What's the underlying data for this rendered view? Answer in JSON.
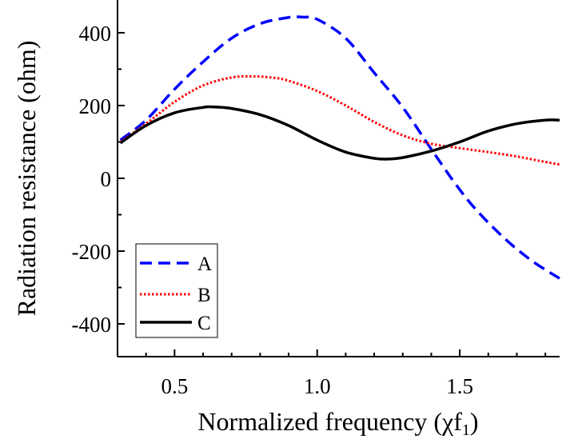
{
  "chart_data": {
    "type": "line",
    "title": "",
    "xlabel": "Normalized frequency (χf",
    "xlabel_subscript": "1",
    "xlabel_close": ")",
    "ylabel": "Radiation resistance (ohm)",
    "xlim": [
      0.3,
      1.85
    ],
    "ylim": [
      -490,
      490
    ],
    "xticks": [
      0.5,
      1.0,
      1.5
    ],
    "xtick_labels": [
      "0.5",
      "1.0",
      "1.5"
    ],
    "yticks": [
      -400,
      -200,
      0,
      200,
      400
    ],
    "ytick_labels": [
      "-400",
      "-200",
      "0",
      "200",
      "400"
    ],
    "legend_position": "bottom-left",
    "series": [
      {
        "name": "A",
        "color": "#0000ff",
        "style": "dashed",
        "x": [
          0.31,
          0.4,
          0.5,
          0.6,
          0.7,
          0.8,
          0.9,
          0.95,
          1.0,
          1.1,
          1.2,
          1.3,
          1.4,
          1.48,
          1.55,
          1.65,
          1.75,
          1.85
        ],
        "y": [
          105,
          160,
          245,
          320,
          385,
          425,
          442,
          443,
          437,
          385,
          290,
          195,
          80,
          -10,
          -80,
          -160,
          -225,
          -275
        ]
      },
      {
        "name": "B",
        "color": "#ff0000",
        "style": "dotted",
        "x": [
          0.31,
          0.4,
          0.5,
          0.6,
          0.7,
          0.78,
          0.85,
          0.9,
          1.0,
          1.1,
          1.2,
          1.3,
          1.4,
          1.5,
          1.6,
          1.7,
          1.8,
          1.85
        ],
        "y": [
          100,
          150,
          210,
          255,
          277,
          280,
          276,
          268,
          240,
          200,
          155,
          118,
          95,
          83,
          72,
          60,
          45,
          38
        ]
      },
      {
        "name": "C",
        "color": "#000000",
        "style": "solid",
        "x": [
          0.31,
          0.4,
          0.5,
          0.6,
          0.64,
          0.7,
          0.8,
          0.9,
          1.0,
          1.1,
          1.2,
          1.25,
          1.3,
          1.4,
          1.5,
          1.6,
          1.7,
          1.8,
          1.85
        ],
        "y": [
          97,
          145,
          180,
          195,
          196,
          192,
          175,
          145,
          105,
          72,
          55,
          53,
          57,
          75,
          100,
          130,
          150,
          160,
          160
        ]
      }
    ]
  }
}
